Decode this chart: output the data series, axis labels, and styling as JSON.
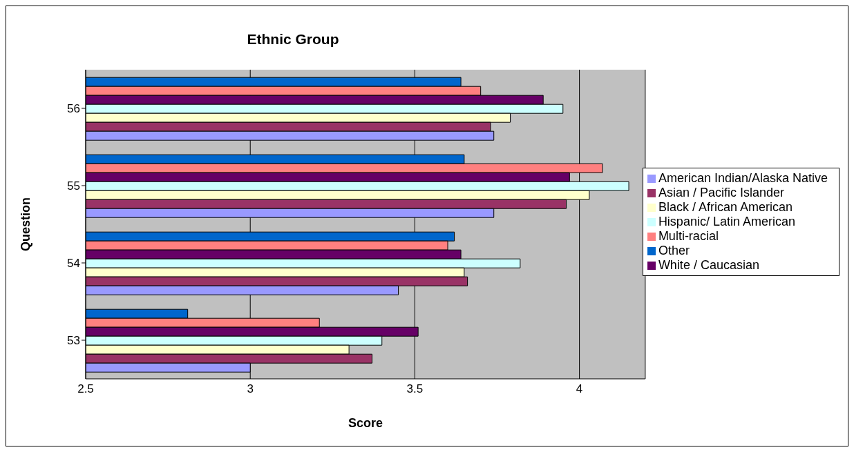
{
  "chart_data": {
    "type": "bar",
    "orientation": "horizontal",
    "title": "Ethnic Group",
    "xlabel": "Score",
    "ylabel": "Question",
    "categories": [
      "56",
      "55",
      "54",
      "53"
    ],
    "series": [
      {
        "name": "Other",
        "color": "#0066cc",
        "values": [
          3.64,
          3.65,
          3.62,
          2.81
        ]
      },
      {
        "name": "Multi-racial",
        "color": "#ff8080",
        "values": [
          3.7,
          4.07,
          3.6,
          3.21
        ]
      },
      {
        "name": "White / Caucasian",
        "color": "#660066",
        "values": [
          3.89,
          3.97,
          3.64,
          3.51
        ]
      },
      {
        "name": "Hispanic/ Latin American",
        "color": "#ccffff",
        "values": [
          3.95,
          4.15,
          3.82,
          3.4
        ]
      },
      {
        "name": "Black / African American",
        "color": "#ffffcc",
        "values": [
          3.79,
          4.03,
          3.65,
          3.3
        ]
      },
      {
        "name": "Asian / Pacific Islander",
        "color": "#993366",
        "values": [
          3.73,
          3.96,
          3.66,
          3.37
        ]
      },
      {
        "name": "American Indian/Alaska Native",
        "color": "#9999ff",
        "values": [
          3.74,
          3.74,
          3.45,
          3.0
        ]
      }
    ],
    "xlim": [
      2.5,
      4.2
    ],
    "xticks": [
      2.5,
      3,
      3.5,
      4
    ],
    "grid": "x",
    "legend": "right"
  }
}
